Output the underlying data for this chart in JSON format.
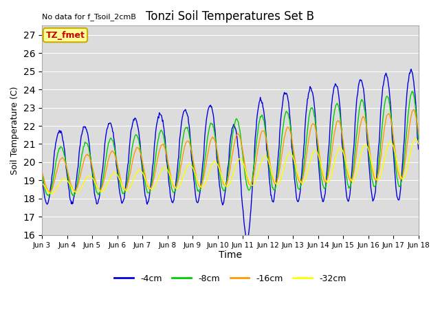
{
  "title": "Tonzi Soil Temperatures Set B",
  "xlabel": "Time",
  "ylabel": "Soil Temperature (C)",
  "no_data_text": "No data for f_Tsoil_2cmB",
  "annotation_text": "TZ_fmet",
  "ylim": [
    16.0,
    27.5
  ],
  "yticks": [
    16.0,
    17.0,
    18.0,
    19.0,
    20.0,
    21.0,
    22.0,
    23.0,
    24.0,
    25.0,
    26.0,
    27.0
  ],
  "colors": {
    "4cm": "#0000dd",
    "8cm": "#00cc00",
    "16cm": "#ff9900",
    "32cm": "#ffff00"
  },
  "legend_labels": [
    "-4cm",
    "-8cm",
    "-16cm",
    "-32cm"
  ],
  "bg_color": "#dcdcdc",
  "fig_bg": "#ffffff",
  "annotation_bg": "#ffff99",
  "annotation_fg": "#cc0000",
  "annotation_edge": "#ccaa00"
}
